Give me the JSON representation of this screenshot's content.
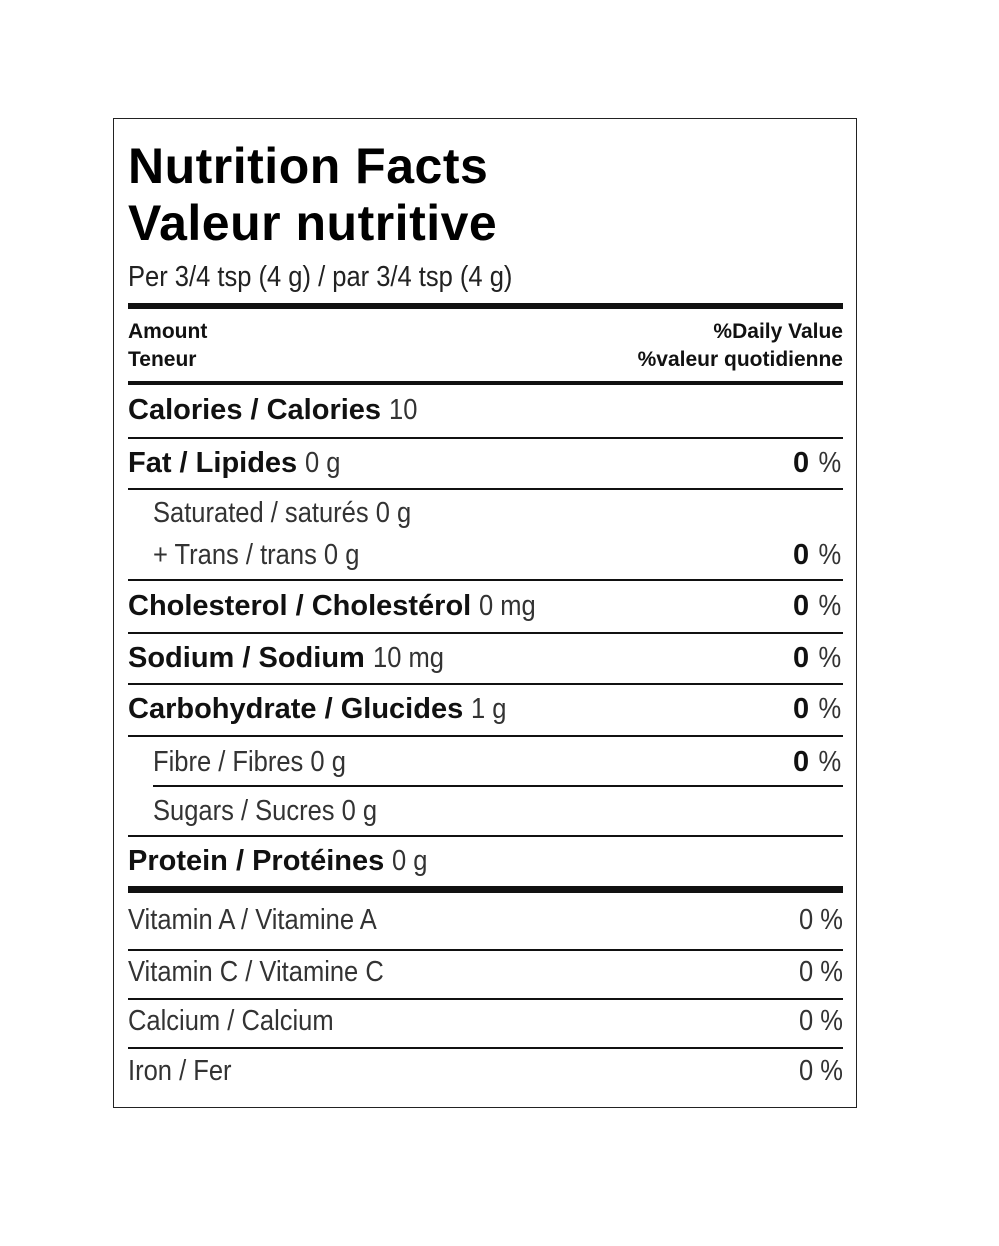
{
  "title_en": "Nutrition Facts",
  "title_fr": "Valeur nutritive",
  "serving": "Per 3/4 tsp (4 g) / par 3/4 tsp (4 g)",
  "header": {
    "amount_en": "Amount",
    "amount_fr": "Teneur",
    "dv_en": "%Daily Value",
    "dv_fr": "%valeur quotidienne"
  },
  "calories": {
    "label": "Calories / Calories",
    "value": "10"
  },
  "nutrients": [
    {
      "label": "Fat / Lipides",
      "value": "0 g",
      "dv": "0",
      "unit": "%"
    },
    {
      "label": "Saturated / saturés 0 g",
      "label2": "+ Trans / trans 0 g",
      "dv": "0",
      "unit": "%"
    },
    {
      "label": "Cholesterol / Cholestérol",
      "value": "0 mg",
      "dv": "0",
      "unit": "%"
    },
    {
      "label": "Sodium / Sodium",
      "value": "10 mg",
      "dv": "0",
      "unit": "%"
    },
    {
      "label": "Carbohydrate / Glucides",
      "value": "1 g",
      "dv": "0",
      "unit": "%"
    },
    {
      "label": "Fibre / Fibres 0 g",
      "dv": "0",
      "unit": "%"
    },
    {
      "label": "Sugars / Sucres 0 g"
    },
    {
      "label": "Protein / Protéines",
      "value": "0 g"
    }
  ],
  "vitamins": [
    {
      "label": "Vitamin A / Vitamine A",
      "dv": "0 %"
    },
    {
      "label": "Vitamin C / Vitamine C",
      "dv": "0 %"
    },
    {
      "label": "Calcium / Calcium",
      "dv": "0 %"
    },
    {
      "label": "Iron / Fer",
      "dv": "0 %"
    }
  ]
}
